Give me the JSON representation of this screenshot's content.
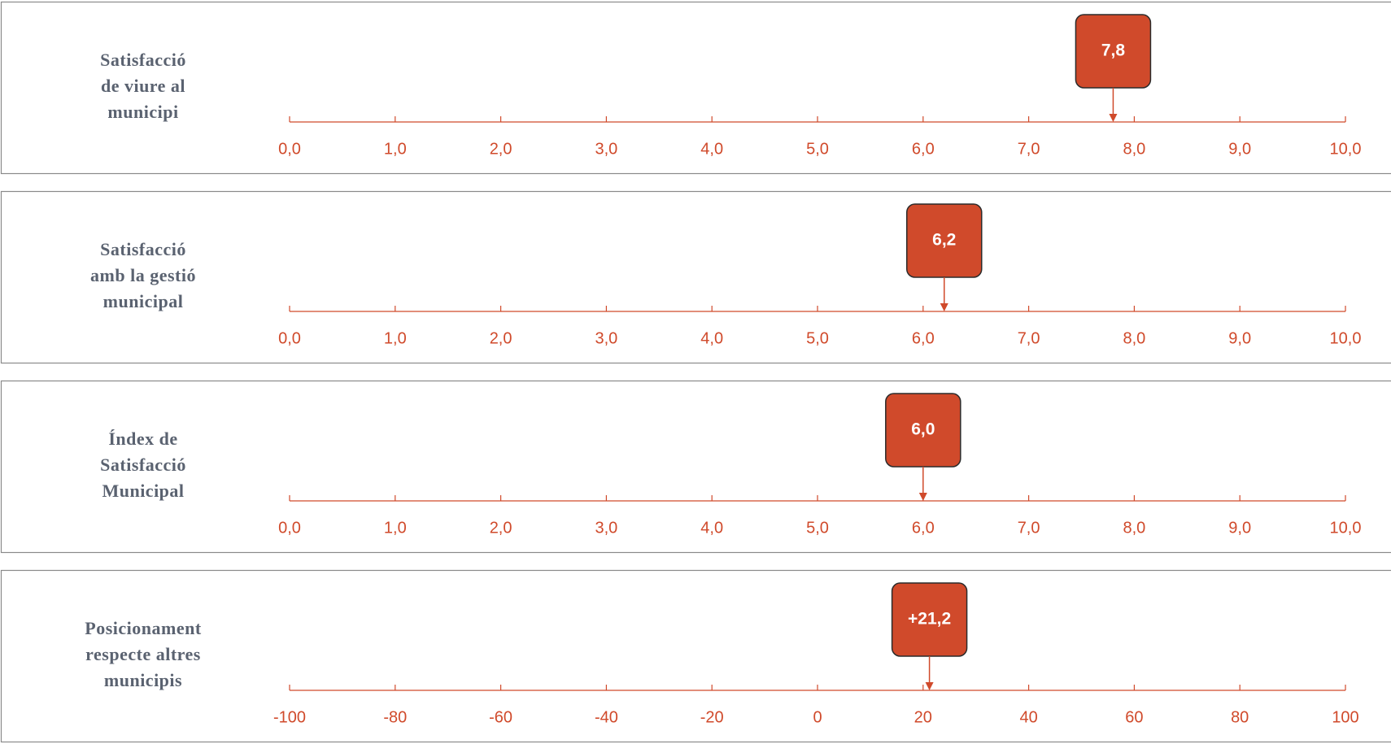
{
  "chart_data": [
    {
      "type": "marker",
      "title": [
        "Satisfacció",
        "de viure al",
        "municipi"
      ],
      "value": 7.8,
      "value_label": "7,8",
      "color": "#d04a2b",
      "xlim": [
        0,
        10
      ],
      "xticks": [
        {
          "value": 0,
          "label": "0,0"
        },
        {
          "value": 1,
          "label": "1,0"
        },
        {
          "value": 2,
          "label": "2,0"
        },
        {
          "value": 3,
          "label": "3,0"
        },
        {
          "value": 4,
          "label": "4,0"
        },
        {
          "value": 5,
          "label": "5,0"
        },
        {
          "value": 6,
          "label": "6,0"
        },
        {
          "value": 7,
          "label": "7,0"
        },
        {
          "value": 8,
          "label": "8,0"
        },
        {
          "value": 9,
          "label": "9,0"
        },
        {
          "value": 10,
          "label": "10,0"
        }
      ]
    },
    {
      "type": "marker",
      "title": [
        "Satisfacció",
        "amb la gestió",
        "municipal"
      ],
      "value": 6.2,
      "value_label": "6,2",
      "color": "#d04a2b",
      "xlim": [
        0,
        10
      ],
      "xticks": [
        {
          "value": 0,
          "label": "0,0"
        },
        {
          "value": 1,
          "label": "1,0"
        },
        {
          "value": 2,
          "label": "2,0"
        },
        {
          "value": 3,
          "label": "3,0"
        },
        {
          "value": 4,
          "label": "4,0"
        },
        {
          "value": 5,
          "label": "5,0"
        },
        {
          "value": 6,
          "label": "6,0"
        },
        {
          "value": 7,
          "label": "7,0"
        },
        {
          "value": 8,
          "label": "8,0"
        },
        {
          "value": 9,
          "label": "9,0"
        },
        {
          "value": 10,
          "label": "10,0"
        }
      ]
    },
    {
      "type": "marker",
      "title": [
        "Índex de",
        "Satisfacció",
        "Municipal"
      ],
      "value": 6.0,
      "value_label": "6,0",
      "color": "#d04a2b",
      "xlim": [
        0,
        10
      ],
      "xticks": [
        {
          "value": 0,
          "label": "0,0"
        },
        {
          "value": 1,
          "label": "1,0"
        },
        {
          "value": 2,
          "label": "2,0"
        },
        {
          "value": 3,
          "label": "3,0"
        },
        {
          "value": 4,
          "label": "4,0"
        },
        {
          "value": 5,
          "label": "5,0"
        },
        {
          "value": 6,
          "label": "6,0"
        },
        {
          "value": 7,
          "label": "7,0"
        },
        {
          "value": 8,
          "label": "8,0"
        },
        {
          "value": 9,
          "label": "9,0"
        },
        {
          "value": 10,
          "label": "10,0"
        }
      ]
    },
    {
      "type": "marker",
      "title": [
        "Posicionament",
        "respecte altres",
        "municipis"
      ],
      "value": 21.2,
      "value_label": "+21,2",
      "color": "#d04a2b",
      "xlim": [
        -100,
        100
      ],
      "xticks": [
        -100,
        -80,
        -60,
        -40,
        -20,
        0,
        20,
        40,
        60,
        80,
        100
      ]
    }
  ]
}
